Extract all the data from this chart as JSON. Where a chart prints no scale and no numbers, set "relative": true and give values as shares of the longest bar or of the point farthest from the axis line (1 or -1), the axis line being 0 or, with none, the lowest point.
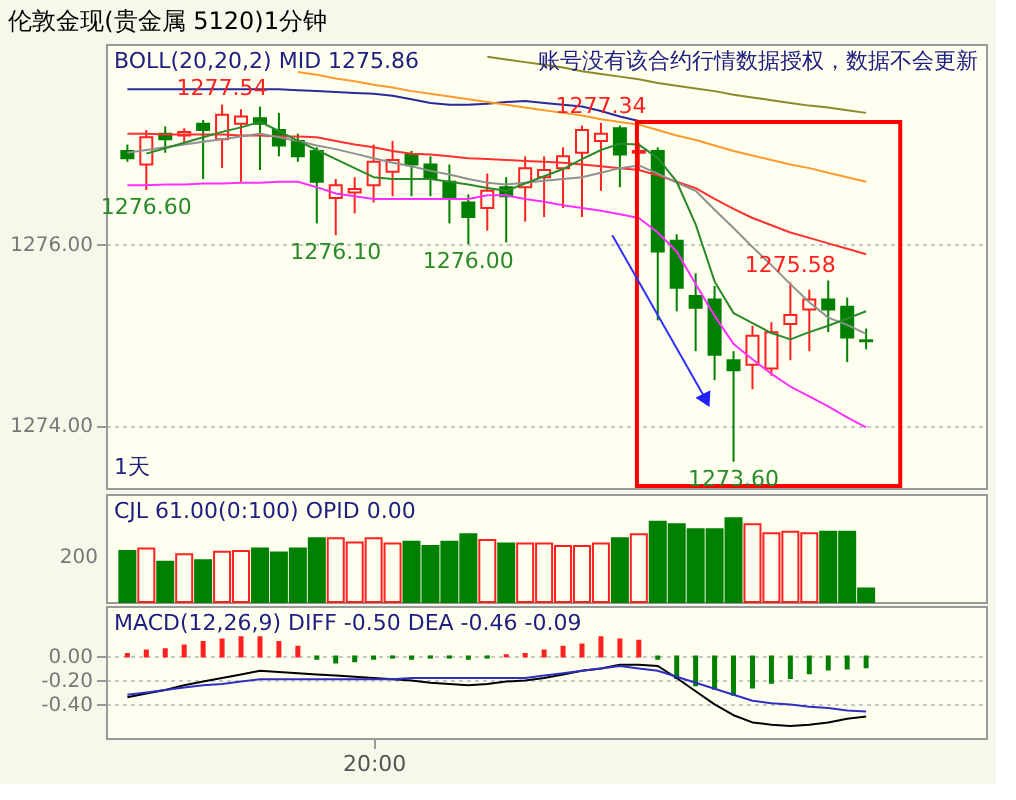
{
  "chart_data": [
    {
      "type": "candlestick",
      "title": "伦敦金现(贵金属 5120)1分钟",
      "annotations": [
        "BOLL(20,20,2)  MID  1275.86",
        "账号没有该合约行情数据授权，数据不会更新",
        "1天",
        {
          "text": "1277.54",
          "y": 1277.54
        },
        {
          "text": "1276.60",
          "y": 1276.6
        },
        {
          "text": "1276.10",
          "y": 1276.1
        },
        {
          "text": "1276.00",
          "y": 1276.0
        },
        {
          "text": "1277.34",
          "y": 1277.34
        },
        {
          "text": "1275.58",
          "y": 1275.58
        },
        {
          "text": "1273.60",
          "y": 1273.6
        }
      ],
      "categories": [
        null,
        null,
        null,
        null,
        null,
        null,
        null,
        null,
        null,
        null,
        null,
        null,
        null,
        null,
        null,
        null,
        null,
        null,
        null,
        null,
        null,
        null,
        null,
        null,
        null,
        null,
        null,
        null,
        null,
        null,
        null,
        null,
        null,
        null,
        null,
        null,
        null,
        null,
        null,
        null
      ],
      "ohlc": [
        [
          1277.03,
          1277.1,
          1276.91,
          1276.95
        ],
        [
          1276.88,
          1277.26,
          1276.6,
          1277.18
        ],
        [
          1277.22,
          1277.3,
          1277.01,
          1277.16
        ],
        [
          1277.2,
          1277.28,
          1277.1,
          1277.24
        ],
        [
          1277.33,
          1277.37,
          1276.72,
          1277.26
        ],
        [
          1277.16,
          1277.54,
          1276.84,
          1277.43
        ],
        [
          1277.33,
          1277.49,
          1276.69,
          1277.41
        ],
        [
          1277.39,
          1277.52,
          1276.82,
          1277.33
        ],
        [
          1277.26,
          1277.45,
          1276.97,
          1277.09
        ],
        [
          1277.14,
          1277.22,
          1276.91,
          1276.97
        ],
        [
          1277.03,
          1277.07,
          1276.23,
          1276.69
        ],
        [
          1276.51,
          1276.72,
          1276.1,
          1276.65
        ],
        [
          1276.57,
          1276.74,
          1276.34,
          1276.61
        ],
        [
          1276.65,
          1277.1,
          1276.46,
          1276.91
        ],
        [
          1276.8,
          1277.14,
          1276.53,
          1276.93
        ],
        [
          1276.99,
          1277.03,
          1276.53,
          1276.88
        ],
        [
          1276.88,
          1276.97,
          1276.53,
          1276.72
        ],
        [
          1276.69,
          1276.88,
          1276.23,
          1276.5
        ],
        [
          1276.46,
          1276.55,
          1276.0,
          1276.3
        ],
        [
          1276.4,
          1276.78,
          1276.15,
          1276.59
        ],
        [
          1276.63,
          1276.74,
          1276.02,
          1276.53
        ],
        [
          1276.63,
          1276.97,
          1276.25,
          1276.84
        ],
        [
          1276.74,
          1276.97,
          1276.3,
          1276.82
        ],
        [
          1276.84,
          1277.07,
          1276.4,
          1276.97
        ],
        [
          1277.01,
          1277.31,
          1276.3,
          1277.26
        ],
        [
          1277.14,
          1277.34,
          1276.59,
          1277.22
        ],
        [
          1277.28,
          1277.31,
          1276.63,
          1276.99
        ],
        [
          1277.01,
          1277.12,
          1276.82,
          1277.03
        ],
        [
          1277.03,
          1277.07,
          1275.16,
          1275.92
        ],
        [
          1276.04,
          1276.11,
          1275.26,
          1275.52
        ],
        [
          1275.43,
          1275.68,
          1274.82,
          1275.3
        ],
        [
          1275.39,
          1275.54,
          1274.5,
          1274.78
        ],
        [
          1274.72,
          1274.82,
          1273.6,
          1274.61
        ],
        [
          1274.67,
          1275.1,
          1274.4,
          1274.99
        ],
        [
          1274.63,
          1275.14,
          1274.55,
          1275.03
        ],
        [
          1275.12,
          1275.58,
          1274.72,
          1275.22
        ],
        [
          1275.28,
          1275.5,
          1274.82,
          1275.39
        ],
        [
          1275.39,
          1275.6,
          1275.03,
          1275.28
        ],
        [
          1275.31,
          1275.41,
          1274.7,
          1274.97
        ],
        [
          1274.94,
          1275.07,
          1274.84,
          1274.93
        ]
      ],
      "colors": [
        "#008000",
        "#ff2020",
        "#008000",
        "#ff2020",
        "#008000",
        "#ff2020",
        "#ff2020",
        "#008000",
        "#008000",
        "#008000",
        "#008000",
        "#ff2020",
        "#ff2020",
        "#ff2020",
        "#ff2020",
        "#008000",
        "#008000",
        "#008000",
        "#008000",
        "#ff2020",
        "#008000",
        "#ff2020",
        "#ff2020",
        "#ff2020",
        "#ff2020",
        "#ff2020",
        "#008000",
        "#ff2020",
        "#008000",
        "#008000",
        "#008000",
        "#008000",
        "#008000",
        "#ff2020",
        "#ff2020",
        "#ff2020",
        "#ff2020",
        "#008000",
        "#008000",
        "#008000"
      ],
      "series": [
        {
          "type": "line",
          "color": "#2a2a9a",
          "values": [
            1277.71,
            1277.71,
            1277.71,
            1277.71,
            1277.71,
            1277.71,
            1277.71,
            1277.71,
            1277.71,
            1277.7,
            1277.69,
            1277.68,
            1277.67,
            1277.66,
            1277.64,
            1277.6,
            1277.56,
            1277.54,
            1277.54,
            1277.55,
            1277.57,
            1277.58,
            1277.56,
            1277.54,
            1277.52,
            1277.47,
            1277.41,
            1277.36,
            null,
            null,
            null,
            null,
            null,
            null,
            null,
            null,
            null,
            null,
            null,
            null
          ]
        },
        {
          "type": "line",
          "color": "#ff9a2a",
          "values": [
            null,
            null,
            null,
            null,
            null,
            null,
            null,
            null,
            null,
            1277.9,
            1277.87,
            1277.83,
            1277.8,
            1277.76,
            1277.73,
            1277.69,
            1277.66,
            1277.63,
            1277.6,
            1277.57,
            1277.54,
            1277.51,
            1277.48,
            1277.45,
            1277.42,
            1277.38,
            1277.35,
            1277.32,
            1277.26,
            1277.2,
            1277.15,
            1277.09,
            1277.03,
            1276.98,
            1276.93,
            1276.88,
            1276.84,
            1276.79,
            1276.74,
            1276.69
          ]
        },
        {
          "type": "line",
          "color": "#8a8a2a",
          "values": [
            null,
            null,
            null,
            null,
            null,
            null,
            null,
            null,
            null,
            null,
            null,
            null,
            null,
            null,
            null,
            null,
            null,
            null,
            null,
            1278.07,
            1278.04,
            1278.01,
            1277.98,
            1277.95,
            1277.91,
            1277.88,
            1277.85,
            1277.82,
            1277.78,
            1277.75,
            1277.72,
            1277.69,
            1277.65,
            1277.62,
            1277.59,
            1277.56,
            1277.53,
            1277.51,
            1277.48,
            1277.45
          ]
        },
        {
          "type": "line",
          "color": "#ff3030",
          "values": [
            1277.22,
            1277.22,
            1277.21,
            1277.21,
            1277.21,
            1277.21,
            1277.2,
            1277.2,
            1277.19,
            1277.19,
            1277.18,
            1277.14,
            1277.1,
            1277.07,
            1277.03,
            1277.0,
            1276.99,
            1276.97,
            1276.95,
            1276.94,
            1276.93,
            1276.92,
            1276.91,
            1276.9,
            1276.88,
            1276.86,
            1276.84,
            1276.82,
            1276.76,
            1276.69,
            1276.62,
            1276.5,
            1276.39,
            1276.29,
            1276.21,
            1276.13,
            1276.07,
            1276.01,
            1275.95,
            1275.89
          ]
        },
        {
          "type": "line",
          "color": "#909090",
          "values": [
            1277.01,
            1277.04,
            1277.07,
            1277.1,
            1277.13,
            1277.16,
            1277.19,
            1277.22,
            1277.18,
            1277.14,
            1277.09,
            1277.05,
            1277.0,
            1276.95,
            1276.9,
            1276.86,
            1276.81,
            1276.77,
            1276.72,
            1276.68,
            1276.66,
            1276.68,
            1276.7,
            1276.72,
            1276.74,
            1276.79,
            1276.84,
            1276.87,
            1276.78,
            1276.68,
            1276.59,
            1276.38,
            1276.18,
            1275.97,
            1275.77,
            1275.56,
            1275.36,
            1275.19,
            1275.11,
            1275.01
          ]
        },
        {
          "type": "line",
          "color": "#2a8a2a",
          "values": [
            null,
            1277.0,
            1277.06,
            1277.12,
            1277.18,
            1277.24,
            1277.29,
            1277.35,
            1277.25,
            1277.14,
            1277.04,
            1276.94,
            1276.84,
            1276.74,
            1276.72,
            1276.72,
            1276.72,
            1276.69,
            1276.66,
            1276.62,
            1276.59,
            1276.67,
            1276.75,
            1276.83,
            1276.94,
            1277.04,
            1277.11,
            1277.1,
            1276.95,
            1276.69,
            1276.22,
            1275.59,
            1275.24,
            1275.13,
            1275.02,
            1274.95,
            1275.03,
            1275.1,
            1275.18,
            1275.26
          ]
        },
        {
          "type": "line",
          "color": "#ff30ff",
          "values": [
            1276.65,
            1276.65,
            1276.66,
            1276.66,
            1276.67,
            1276.67,
            1276.68,
            1276.68,
            1276.69,
            1276.69,
            1276.63,
            1276.56,
            1276.53,
            1276.5,
            1276.5,
            1276.5,
            1276.5,
            1276.5,
            1276.5,
            1276.54,
            1276.54,
            1276.5,
            1276.47,
            1276.43,
            1276.4,
            1276.37,
            1276.33,
            1276.29,
            1276.13,
            1275.92,
            1275.56,
            1275.21,
            1274.9,
            1274.73,
            1274.57,
            1274.43,
            1274.32,
            1274.21,
            1274.09,
            1273.98
          ]
        }
      ],
      "ylim": [
        1273.31,
        1278.21
      ],
      "yticks": [
        {
          "value": 1274,
          "label": "1274.00"
        },
        {
          "value": 1276,
          "label": "1276.00"
        }
      ],
      "grid": "y",
      "tick_labels": "y"
    },
    {
      "type": "bar",
      "relative": true,
      "annotations": [
        "CJL  61.00(0:100)    OPID  0.00",
        "200"
      ],
      "categories": [
        null,
        null,
        null,
        null,
        null,
        null,
        null,
        null,
        null,
        null,
        null,
        null,
        null,
        null,
        null,
        null,
        null,
        null,
        null,
        null,
        null,
        null,
        null,
        null,
        null,
        null,
        null,
        null,
        null,
        null,
        null,
        null,
        null,
        null,
        null,
        null,
        null,
        null,
        null,
        null
      ],
      "values": [
        0.61,
        0.64,
        0.48,
        0.57,
        0.5,
        0.6,
        0.61,
        0.64,
        0.59,
        0.64,
        0.76,
        0.76,
        0.71,
        0.76,
        0.7,
        0.72,
        0.67,
        0.72,
        0.81,
        0.74,
        0.7,
        0.7,
        0.7,
        0.67,
        0.67,
        0.7,
        0.76,
        0.81,
        0.96,
        0.93,
        0.87,
        0.87,
        1,
        0.93,
        0.82,
        0.84,
        0.82,
        0.84,
        0.84,
        0.16
      ],
      "colors": [
        "#008000",
        "#ff2020",
        "#008000",
        "#ff2020",
        "#008000",
        "#ff2020",
        "#ff2020",
        "#008000",
        "#008000",
        "#008000",
        "#008000",
        "#ff2020",
        "#ff2020",
        "#ff2020",
        "#ff2020",
        "#008000",
        "#008000",
        "#008000",
        "#008000",
        "#ff2020",
        "#008000",
        "#ff2020",
        "#ff2020",
        "#ff2020",
        "#ff2020",
        "#ff2020",
        "#008000",
        "#ff2020",
        "#008000",
        "#008000",
        "#008000",
        "#008000",
        "#008000",
        "#ff2020",
        "#ff2020",
        "#ff2020",
        "#ff2020",
        "#008000",
        "#008000",
        "#008000"
      ],
      "tick_labels": false
    },
    {
      "type": "bar",
      "annotations": [
        "MACD(12,26,9)  DIFF  -0.50    DEA  -0.46      -0.09"
      ],
      "categories": [
        null,
        null,
        null,
        null,
        null,
        null,
        null,
        null,
        null,
        null,
        null,
        null,
        null,
        "20:00",
        null,
        null,
        null,
        null,
        null,
        null,
        null,
        null,
        null,
        null,
        null,
        null,
        null,
        null,
        null,
        null,
        null,
        null,
        null,
        null,
        null,
        null,
        null,
        null,
        null,
        null
      ],
      "values": [
        0.02,
        0.05,
        0.06,
        0.09,
        0.12,
        0.14,
        0.16,
        0.16,
        0.12,
        0.08,
        -0.02,
        -0.05,
        -0.04,
        -0.02,
        -0.01,
        -0.02,
        -0.01,
        -0.01,
        -0.02,
        -0.01,
        0.01,
        0.02,
        0.05,
        0.08,
        0.1,
        0.16,
        0.14,
        0.13,
        -0.02,
        -0.18,
        -0.24,
        -0.27,
        -0.32,
        -0.26,
        -0.22,
        -0.18,
        -0.14,
        -0.11,
        -0.1,
        -0.09
      ],
      "colors": [
        "#ff2020",
        "#ff2020",
        "#ff2020",
        "#ff2020",
        "#ff2020",
        "#ff2020",
        "#ff2020",
        "#ff2020",
        "#ff2020",
        "#ff2020",
        "#008000",
        "#008000",
        "#008000",
        "#008000",
        "#008000",
        "#008000",
        "#008000",
        "#008000",
        "#008000",
        "#008000",
        "#ff2020",
        "#ff2020",
        "#ff2020",
        "#ff2020",
        "#ff2020",
        "#ff2020",
        "#ff2020",
        "#ff2020",
        "#008000",
        "#008000",
        "#008000",
        "#008000",
        "#008000",
        "#008000",
        "#008000",
        "#008000",
        "#008000",
        "#008000",
        "#008000",
        "#008000"
      ],
      "series": [
        {
          "type": "line",
          "color": "#000000",
          "values": [
            -0.34,
            -0.31,
            -0.28,
            -0.24,
            -0.21,
            -0.18,
            -0.15,
            -0.12,
            -0.13,
            -0.14,
            -0.15,
            -0.16,
            -0.17,
            -0.18,
            -0.19,
            -0.2,
            -0.22,
            -0.23,
            -0.24,
            -0.23,
            -0.21,
            -0.2,
            -0.18,
            -0.15,
            -0.12,
            -0.1,
            -0.07,
            -0.07,
            -0.08,
            -0.18,
            -0.29,
            -0.4,
            -0.49,
            -0.55,
            -0.57,
            -0.58,
            -0.57,
            -0.55,
            -0.52,
            -0.5
          ]
        },
        {
          "type": "line",
          "color": "#3030c0",
          "values": [
            -0.32,
            -0.3,
            -0.28,
            -0.26,
            -0.24,
            -0.23,
            -0.21,
            -0.19,
            -0.19,
            -0.19,
            -0.19,
            -0.19,
            -0.19,
            -0.19,
            -0.19,
            -0.18,
            -0.18,
            -0.18,
            -0.18,
            -0.18,
            -0.18,
            -0.18,
            -0.16,
            -0.14,
            -0.12,
            -0.1,
            -0.08,
            -0.1,
            -0.12,
            -0.17,
            -0.22,
            -0.27,
            -0.32,
            -0.37,
            -0.39,
            -0.4,
            -0.42,
            -0.43,
            -0.45,
            -0.46
          ]
        }
      ],
      "ylim": [
        -0.68,
        0.42
      ],
      "yticks": [
        {
          "value": 0,
          "label": "0.00"
        },
        {
          "value": -0.2,
          "label": "-0.20"
        },
        {
          "value": -0.4,
          "label": "-0.40"
        }
      ],
      "grid": "y"
    }
  ]
}
